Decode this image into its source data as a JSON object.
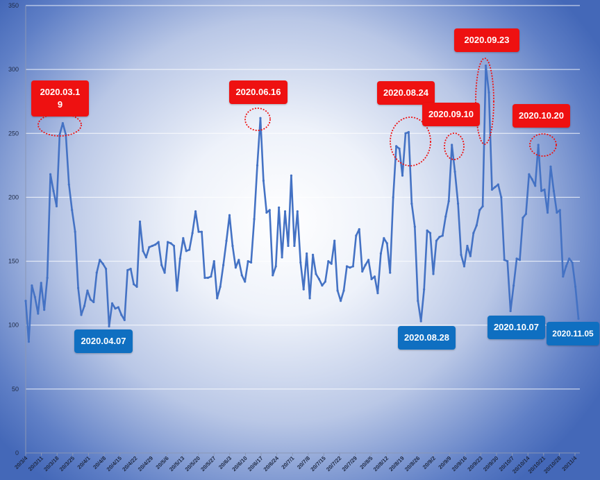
{
  "chart_data": {
    "type": "line",
    "title": "",
    "xlabel": "",
    "ylabel": "",
    "ylim": [
      0,
      350
    ],
    "yticks": [
      0,
      50,
      100,
      150,
      200,
      250,
      300,
      350
    ],
    "grid": true,
    "line_color": "#4472c4",
    "x_tick_labels": [
      "20/3/4",
      "20/3/11",
      "20/3/18",
      "20/3/25",
      "20/4/1",
      "20/4/8",
      "20/4/15",
      "20/4/22",
      "20/4/29",
      "20/5/6",
      "20/5/13",
      "20/5/20",
      "20/5/27",
      "20/6/3",
      "20/6/10",
      "20/6/17",
      "20/6/24",
      "20/7/1",
      "20/7/8",
      "20/7/15",
      "20/7/22",
      "20/7/29",
      "20/8/5",
      "20/8/12",
      "20/8/19",
      "20/8/26",
      "20/9/2",
      "20/9/9",
      "20/9/16",
      "20/9/23",
      "20/9/30",
      "20/10/7",
      "20/10/14",
      "20/10/21",
      "20/10/28",
      "20/11/4"
    ],
    "series": [
      {
        "values": [
          119,
          87,
          131,
          122,
          109,
          133,
          112,
          137,
          218,
          205,
          193,
          249,
          258,
          249,
          210,
          190,
          173,
          129,
          108,
          115,
          127,
          120,
          118,
          141,
          151,
          148,
          144,
          99,
          117,
          113,
          114,
          108,
          104,
          143,
          144,
          132,
          130,
          181,
          158,
          153,
          161,
          162,
          163,
          165,
          147,
          141,
          165,
          164,
          162,
          127,
          152,
          168,
          158,
          159,
          172,
          189,
          173,
          173,
          137,
          137,
          138,
          150,
          121,
          130,
          147,
          166,
          186,
          162,
          145,
          151,
          139,
          134,
          150,
          149,
          183,
          225,
          262,
          213,
          188,
          190,
          139,
          146,
          192,
          153,
          189,
          162,
          217,
          162,
          189,
          149,
          128,
          156,
          121,
          155,
          140,
          136,
          131,
          134,
          150,
          148,
          166,
          127,
          119,
          127,
          146,
          145,
          146,
          170,
          175,
          142,
          147,
          151,
          136,
          138,
          125,
          156,
          168,
          164,
          141,
          200,
          240,
          238,
          217,
          250,
          251,
          195,
          177,
          119,
          103,
          128,
          174,
          172,
          140,
          166,
          169,
          170,
          185,
          197,
          241,
          220,
          195,
          155,
          146,
          162,
          154,
          172,
          178,
          190,
          193,
          303,
          282,
          206,
          208,
          210,
          200,
          151,
          150,
          111,
          131,
          152,
          151,
          184,
          187,
          218,
          214,
          209,
          241,
          205,
          206,
          188,
          224,
          205,
          188,
          190,
          138,
          146,
          152,
          149,
          130,
          105
        ]
      }
    ],
    "annotations": {
      "peaks": [
        {
          "label": "2020.03.1\n9",
          "value": 258
        },
        {
          "label": "2020.06.16",
          "value": 262
        },
        {
          "label": "2020.08.24",
          "value": 251
        },
        {
          "label": "2020.09.10",
          "value": 241
        },
        {
          "label": "2020.09.23",
          "value": 303
        },
        {
          "label": "2020.10.20",
          "value": 241
        }
      ],
      "troughs": [
        {
          "label": "2020.04.07",
          "value": 99
        },
        {
          "label": "2020.08.28",
          "value": 103
        },
        {
          "label": "2020.10.07",
          "value": 111
        },
        {
          "label": "2020.11.05",
          "value": 105
        }
      ]
    },
    "peak_color": "#ee1111",
    "trough_color": "#0f6fc1"
  }
}
